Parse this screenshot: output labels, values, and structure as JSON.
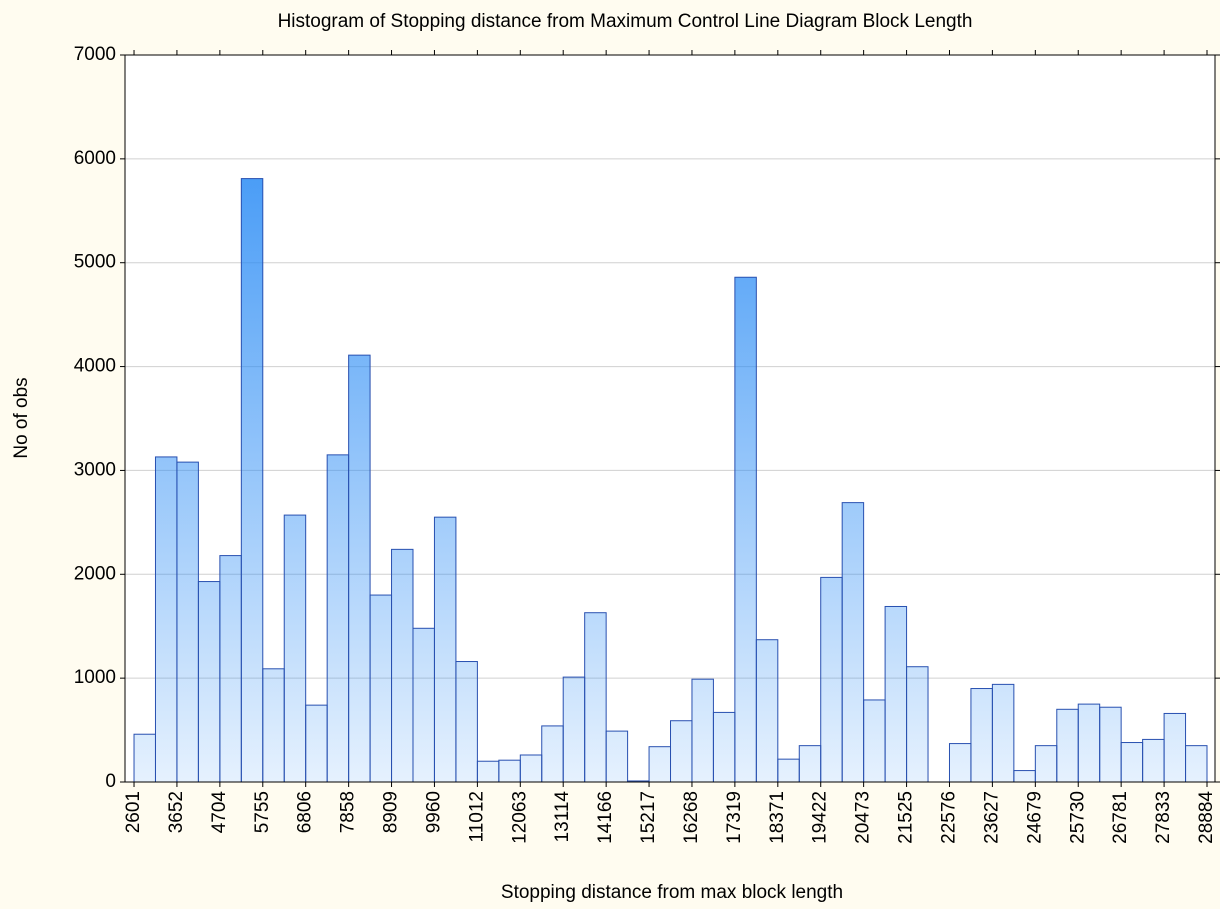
{
  "chart_data": {
    "type": "histogram",
    "title": "Histogram of Stopping distance from Maximum Control Line Diagram Block Length",
    "xlabel": "Stopping distance from max block length",
    "ylabel": "No of obs",
    "bins": [
      2601,
      3126.5,
      3652,
      4178,
      4704,
      5229.5,
      5755,
      6280.5,
      6806,
      7332,
      7858,
      8383.5,
      8909,
      9434.5,
      9960,
      10486,
      11012,
      11537.5,
      12063,
      12588.5,
      13114,
      13640,
      14166,
      14691.5,
      15217,
      15742.5,
      16268,
      16793.5,
      17319,
      17845,
      18371,
      18896.5,
      19422,
      19947.5,
      20473,
      20999,
      21525,
      22050.5,
      22576,
      23101.5,
      23627,
      24153,
      24679,
      25204.5,
      25730,
      26255.5,
      26781,
      27307,
      27833,
      28358.5,
      28884
    ],
    "values": [
      460,
      3130,
      3080,
      1930,
      2180,
      5810,
      1090,
      2570,
      740,
      3150,
      4110,
      1800,
      2240,
      1480,
      2550,
      1160,
      200,
      210,
      260,
      540,
      1010,
      1630,
      490,
      10,
      340,
      590,
      990,
      670,
      4860,
      1370,
      220,
      350,
      1970,
      2690,
      790,
      1690,
      1110,
      0,
      370,
      900,
      940,
      110,
      350,
      700,
      750,
      720,
      380,
      410,
      660,
      350
    ],
    "xlim": [
      2380,
      29080
    ],
    "xticks": [
      2601,
      3652,
      4704,
      5755,
      6806,
      7858,
      8909,
      9960,
      11012,
      12063,
      13114,
      14166,
      15217,
      16268,
      17319,
      18371,
      19422,
      20473,
      21525,
      22576,
      23627,
      24679,
      25730,
      26781,
      27833,
      28884
    ],
    "ylim": [
      0,
      7000
    ],
    "yticks": [
      0,
      1000,
      2000,
      3000,
      4000,
      5000,
      6000,
      7000
    ],
    "grid": true,
    "color": "#2b8cf5",
    "edgecolor": "#2850b0"
  }
}
